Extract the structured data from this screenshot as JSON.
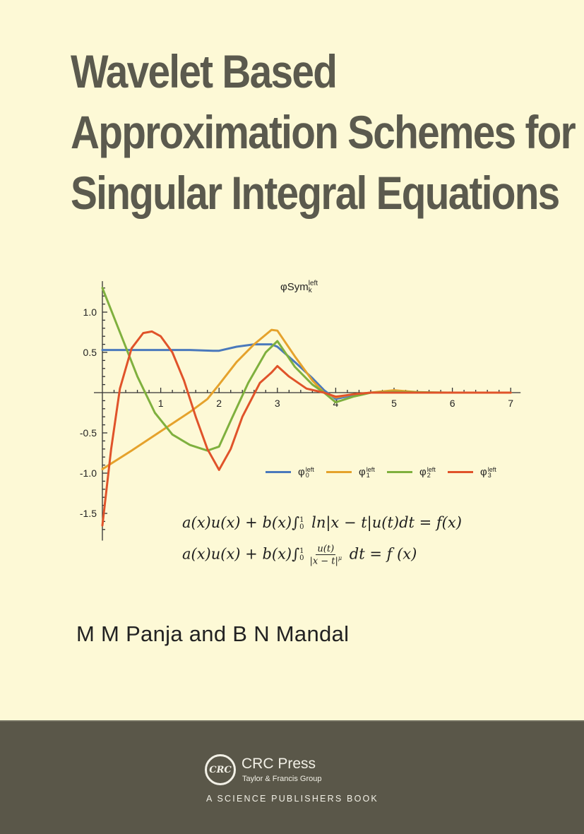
{
  "cover": {
    "title_lines": [
      "Wavelet Based",
      "Approximation Schemes for",
      "Singular Integral Equations"
    ],
    "authors": "M M Panja and B N Mandal",
    "background_color": "#FDF9D6",
    "title_color": "#5B5A4E",
    "footer_color": "#5A5749"
  },
  "equations": {
    "eq1": {
      "lhs": "a(x)u(x) + b(x)∫",
      "upper": "1",
      "lower": "0",
      "rest": " ln|x − t|u(t)dt = f(x)"
    },
    "eq2": {
      "lhs": "a(x)u(x) + b(x)∫",
      "upper": "1",
      "lower": "0",
      "num": "u(t)",
      "den": "|x − t|",
      "den_exp": "μ",
      "rest": " dt = f (x)"
    }
  },
  "publisher": {
    "logo_text": "CRC",
    "name": "CRC Press",
    "group": "Taylor & Francis Group",
    "tagline": "A SCIENCE PUBLISHERS BOOK"
  },
  "chart_data": {
    "type": "line",
    "title": "φSym",
    "title_sup": "left",
    "title_sub": "k",
    "xlabel": "",
    "ylabel": "",
    "xlim": [
      0,
      7
    ],
    "ylim": [
      -1.75,
      1.35
    ],
    "xticks": [
      "1",
      "2",
      "3",
      "4",
      "5",
      "6",
      "7"
    ],
    "yticks": [
      "1.0",
      "0.5",
      "-0.5",
      "-1.0",
      "-1.5"
    ],
    "ytick_values": [
      1.0,
      0.5,
      -0.5,
      -1.0,
      -1.5
    ],
    "grid": false,
    "legend_position": "lower right (inside)",
    "series": [
      {
        "name": "φ0 left",
        "base": "φ",
        "sub": "0",
        "sup": "left",
        "color": "#4A79BC",
        "x": [
          0,
          0.5,
          1.0,
          1.5,
          1.9,
          2.0,
          2.3,
          2.6,
          2.9,
          3.0,
          3.3,
          3.6,
          3.8,
          4.0,
          4.3,
          4.6,
          5.0,
          5.5,
          6.0,
          7.0
        ],
        "y": [
          0.53,
          0.53,
          0.53,
          0.53,
          0.52,
          0.52,
          0.57,
          0.6,
          0.6,
          0.57,
          0.38,
          0.18,
          0.03,
          -0.08,
          -0.03,
          0.0,
          0.01,
          0.0,
          0.0,
          0.0
        ]
      },
      {
        "name": "φ1 left",
        "base": "φ",
        "sub": "1",
        "sup": "left",
        "color": "#E5A22C",
        "x": [
          0,
          0.5,
          1.0,
          1.5,
          1.8,
          2.0,
          2.3,
          2.6,
          2.9,
          3.0,
          3.3,
          3.6,
          3.8,
          4.0,
          4.3,
          4.6,
          5.0,
          5.5,
          6.0,
          7.0
        ],
        "y": [
          -0.95,
          -0.72,
          -0.48,
          -0.24,
          -0.08,
          0.1,
          0.38,
          0.6,
          0.78,
          0.77,
          0.45,
          0.15,
          0.0,
          -0.06,
          -0.02,
          0.0,
          0.03,
          0.0,
          0.0,
          0.0
        ]
      },
      {
        "name": "φ2 left",
        "base": "φ",
        "sub": "2",
        "sup": "left",
        "color": "#7FB03E",
        "x": [
          0,
          0.3,
          0.6,
          0.9,
          1.2,
          1.5,
          1.8,
          2.0,
          2.2,
          2.5,
          2.8,
          3.0,
          3.3,
          3.6,
          3.8,
          4.0,
          4.3,
          4.6,
          5.0,
          6.0,
          7.0
        ],
        "y": [
          1.3,
          0.75,
          0.2,
          -0.25,
          -0.52,
          -0.65,
          -0.72,
          -0.67,
          -0.35,
          0.12,
          0.5,
          0.64,
          0.32,
          0.1,
          0.0,
          -0.12,
          -0.05,
          0.0,
          0.01,
          0.0,
          0.0
        ]
      },
      {
        "name": "φ3 left",
        "base": "φ",
        "sub": "3",
        "sup": "left",
        "color": "#E0532A",
        "x": [
          0,
          0.15,
          0.3,
          0.5,
          0.7,
          0.85,
          1.0,
          1.2,
          1.4,
          1.6,
          1.8,
          2.0,
          2.2,
          2.4,
          2.7,
          2.9,
          3.0,
          3.2,
          3.5,
          3.8,
          4.0,
          4.3,
          4.6,
          5.0,
          6.0,
          7.0
        ],
        "y": [
          -1.65,
          -0.7,
          0.05,
          0.55,
          0.74,
          0.76,
          0.7,
          0.5,
          0.15,
          -0.3,
          -0.7,
          -0.96,
          -0.7,
          -0.3,
          0.12,
          0.25,
          0.33,
          0.2,
          0.05,
          0.0,
          -0.05,
          -0.02,
          0.0,
          0.0,
          0.0,
          0.0
        ]
      }
    ]
  }
}
